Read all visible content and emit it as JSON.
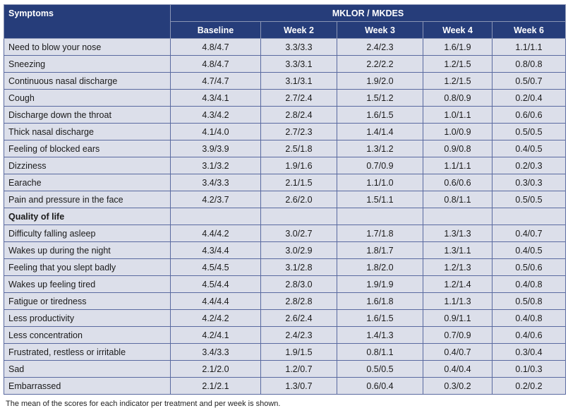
{
  "table": {
    "corner": "Symptoms",
    "group_header": "MKLOR / MKDES",
    "columns": [
      "Baseline",
      "Week 2",
      "Week 3",
      "Week 4",
      "Week 6"
    ],
    "symptoms": [
      {
        "label": "Need to blow your nose",
        "values": [
          "4.8/4.7",
          "3.3/3.3",
          "2.4/2.3",
          "1.6/1.9",
          "1.1/1.1"
        ]
      },
      {
        "label": "Sneezing",
        "values": [
          "4.8/4.7",
          "3.3/3.1",
          "2.2/2.2",
          "1.2/1.5",
          "0.8/0.8"
        ]
      },
      {
        "label": "Continuous nasal discharge",
        "values": [
          "4.7/4.7",
          "3.1/3.1",
          "1.9/2.0",
          "1.2/1.5",
          "0.5/0.7"
        ]
      },
      {
        "label": "Cough",
        "values": [
          "4.3/4.1",
          "2.7/2.4",
          "1.5/1.2",
          "0.8/0.9",
          "0.2/0.4"
        ]
      },
      {
        "label": "Discharge down the throat",
        "values": [
          "4.3/4.2",
          "2.8/2.4",
          "1.6/1.5",
          "1.0/1.1",
          "0.6/0.6"
        ]
      },
      {
        "label": "Thick nasal discharge",
        "values": [
          "4.1/4.0",
          "2.7/2.3",
          "1.4/1.4",
          "1.0/0.9",
          "0.5/0.5"
        ]
      },
      {
        "label": "Feeling of blocked ears",
        "values": [
          "3.9/3.9",
          "2.5/1.8",
          "1.3/1.2",
          "0.9/0.8",
          "0.4/0.5"
        ]
      },
      {
        "label": "Dizziness",
        "values": [
          "3.1/3.2",
          "1.9/1.6",
          "0.7/0.9",
          "1.1/1.1",
          "0.2/0.3"
        ]
      },
      {
        "label": "Earache",
        "values": [
          "3.4/3.3",
          "2.1/1.5",
          "1.1/1.0",
          "0.6/0.6",
          "0.3/0.3"
        ]
      },
      {
        "label": "Pain and pressure in the face",
        "values": [
          "4.2/3.7",
          "2.6/2.0",
          "1.5/1.1",
          "0.8/1.1",
          "0.5/0.5"
        ]
      }
    ],
    "section_label": "Quality of life",
    "quality": [
      {
        "label": "Difficulty falling asleep",
        "values": [
          "4.4/4.2",
          "3.0/2.7",
          "1.7/1.8",
          "1.3/1.3",
          "0.4/0.7"
        ]
      },
      {
        "label": "Wakes up during the night",
        "values": [
          "4.3/4.4",
          "3.0/2.9",
          "1.8/1.7",
          "1.3/1.1",
          "0.4/0.5"
        ]
      },
      {
        "label": "Feeling that you slept badly",
        "values": [
          "4.5/4.5",
          "3.1/2.8",
          "1.8/2.0",
          "1.2/1.3",
          "0.5/0.6"
        ]
      },
      {
        "label": "Wakes up feeling tired",
        "values": [
          "4.5/4.4",
          "2.8/3.0",
          "1.9/1.9",
          "1.2/1.4",
          "0.4/0.8"
        ]
      },
      {
        "label": "Fatigue or tiredness",
        "values": [
          "4.4/4.4",
          "2.8/2.8",
          "1.6/1.8",
          "1.1/1.3",
          "0.5/0.8"
        ]
      },
      {
        "label": "Less productivity",
        "values": [
          "4.2/4.2",
          "2.6/2.4",
          "1.6/1.5",
          "0.9/1.1",
          "0.4/0.8"
        ]
      },
      {
        "label": "Less concentration",
        "values": [
          "4.2/4.1",
          "2.4/2.3",
          "1.4/1.3",
          "0.7/0.9",
          "0.4/0.6"
        ]
      },
      {
        "label": "Frustrated, restless or irritable",
        "values": [
          "3.4/3.3",
          "1.9/1.5",
          "0.8/1.1",
          "0.4/0.7",
          "0.3/0.4"
        ]
      },
      {
        "label": "Sad",
        "values": [
          "2.1/2.0",
          "1.2/0.7",
          "0.5/0.5",
          "0.4/0.4",
          "0.1/0.3"
        ]
      },
      {
        "label": "Embarrassed",
        "values": [
          "2.1/2.1",
          "1.3/0.7",
          "0.6/0.4",
          "0.3/0.2",
          "0.2/0.2"
        ]
      }
    ]
  },
  "footnote": "The mean of the scores for each indicator per treatment and per week is shown."
}
